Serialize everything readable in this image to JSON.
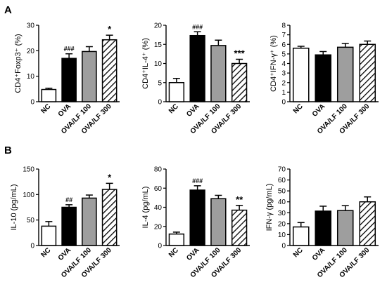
{
  "colors": {
    "NC": "#ffffff",
    "OVA": "#000000",
    "OVA/LF 100": "#9e9e9e",
    "OVA/LF 300": "hatch",
    "stroke": "#000000"
  },
  "panel_labels": [
    "A",
    "B"
  ],
  "chart_data": [
    {
      "type": "bar",
      "panel": "A",
      "position": "top-left",
      "ylabel": "CD4⁺Foxp3⁺ (%)",
      "ylim": [
        0,
        30
      ],
      "yticks": [
        0,
        10,
        20,
        30
      ],
      "ytick_labels": [
        "0",
        "10",
        "20",
        "30"
      ],
      "categories": [
        "NC",
        "OVA",
        "OVA/LF 100",
        "OVA/LF 300"
      ],
      "values": [
        4.8,
        17.0,
        19.7,
        24.3
      ],
      "errors": [
        0.5,
        1.8,
        1.9,
        1.8
      ],
      "annotations": [
        "",
        "###",
        "",
        "*"
      ]
    },
    {
      "type": "bar",
      "panel": "A",
      "position": "top-middle",
      "ylabel": "CD4⁺IL-4⁺ (%)",
      "ylim": [
        0,
        20
      ],
      "yticks": [
        0,
        5,
        10,
        15,
        20
      ],
      "ytick_labels": [
        "0",
        "5",
        "10",
        "15",
        "20"
      ],
      "categories": [
        "NC",
        "OVA",
        "OVA/LF 100",
        "OVA/LF 300"
      ],
      "values": [
        5.0,
        17.3,
        14.7,
        10.0
      ],
      "errors": [
        1.1,
        1.0,
        1.4,
        1.1
      ],
      "annotations": [
        "",
        "###",
        "",
        "***"
      ]
    },
    {
      "type": "bar",
      "panel": "A",
      "position": "top-right",
      "ylabel": "CD4⁺IFN-γ⁺ (%)",
      "ylim": [
        0,
        8
      ],
      "yticks": [
        0,
        1,
        2,
        3,
        4,
        5,
        6,
        7,
        8
      ],
      "ytick_labels": [
        "0",
        "1",
        "2",
        "3",
        "4",
        "5",
        "6",
        "7",
        "8"
      ],
      "categories": [
        "NC",
        "OVA",
        "OVA/LF 100",
        "OVA/LF 300"
      ],
      "values": [
        5.6,
        4.9,
        5.7,
        6.0
      ],
      "errors": [
        0.2,
        0.35,
        0.4,
        0.35
      ],
      "annotations": [
        "",
        "",
        "",
        ""
      ]
    },
    {
      "type": "bar",
      "panel": "B",
      "position": "bottom-left",
      "ylabel": "IL-10 (pg/mL)",
      "ylim": [
        0,
        150
      ],
      "yticks": [
        0,
        50,
        100,
        150
      ],
      "ytick_labels": [
        "0",
        "50",
        "100",
        "150"
      ],
      "categories": [
        "NC",
        "OVA",
        "OVA/LF 100",
        "OVA/LF 300"
      ],
      "values": [
        38,
        75,
        93,
        110
      ],
      "errors": [
        9,
        5,
        6,
        12
      ],
      "annotations": [
        "",
        "##",
        "",
        "*"
      ]
    },
    {
      "type": "bar",
      "panel": "B",
      "position": "bottom-middle",
      "ylabel": "IL-4 (pg/mL)",
      "ylim": [
        0,
        80
      ],
      "yticks": [
        0,
        20,
        40,
        60,
        80
      ],
      "ytick_labels": [
        "0",
        "20",
        "40",
        "60",
        "80"
      ],
      "categories": [
        "NC",
        "OVA",
        "OVA/LF 100",
        "OVA/LF 300"
      ],
      "values": [
        12,
        58,
        49,
        37
      ],
      "errors": [
        2,
        4.5,
        3.5,
        5
      ],
      "annotations": [
        "",
        "###",
        "",
        "**"
      ]
    },
    {
      "type": "bar",
      "panel": "B",
      "position": "bottom-right",
      "ylabel": "IFN-γ (pg/mL)",
      "ylim": [
        0,
        70
      ],
      "yticks": [
        0,
        10,
        20,
        30,
        40,
        50,
        60,
        70
      ],
      "ytick_labels": [
        "0",
        "10",
        "20",
        "30",
        "40",
        "50",
        "60",
        "70"
      ],
      "categories": [
        "NC",
        "OVA",
        "OVA/LF 100",
        "OVA/LF 300"
      ],
      "values": [
        17,
        31.5,
        32,
        40
      ],
      "errors": [
        4,
        4.5,
        4.5,
        4.5
      ],
      "annotations": [
        "",
        "",
        "",
        ""
      ]
    }
  ]
}
